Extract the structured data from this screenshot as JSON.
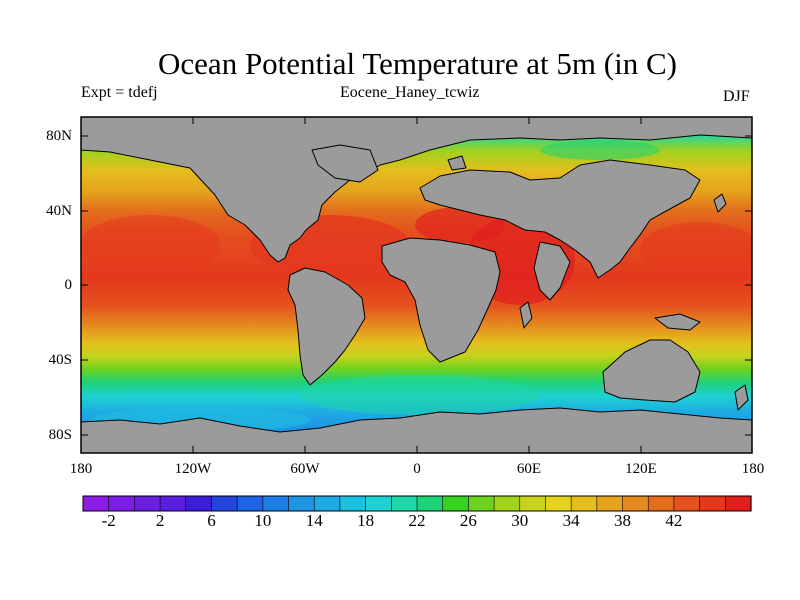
{
  "figure": {
    "title": "Ocean Potential Temperature at 5m (in C)",
    "left_label": "Expt = tdefj",
    "center_label": "Eocene_Haney_tcwiz",
    "right_label": "DJF",
    "y_ticks": [
      "80N",
      "40N",
      "0",
      "40S",
      "80S"
    ],
    "x_ticks": [
      "180",
      "120W",
      "60W",
      "0",
      "60E",
      "120E",
      "180"
    ],
    "colorbar_labels": [
      "-2",
      "2",
      "6",
      "10",
      "14",
      "18",
      "22",
      "26",
      "30",
      "34",
      "38",
      "42"
    ],
    "land_color": "#9b9b9b",
    "colorbar_colors": [
      "#8a1ee8",
      "#7a1ee6",
      "#6a1ede",
      "#5a1ede",
      "#3b1ed8",
      "#2446dc",
      "#1f64e4",
      "#1e7ee8",
      "#1e94e4",
      "#1eaae4",
      "#1ec0e0",
      "#1ed2d2",
      "#1ed6a6",
      "#1ed278",
      "#36d21e",
      "#6ed21e",
      "#a0d21e",
      "#c8d21e",
      "#e4d21e",
      "#e4be1e",
      "#e4a41e",
      "#e48a1e",
      "#e46e1e",
      "#e4521e",
      "#e4381e",
      "#e01e1e"
    ]
  }
}
